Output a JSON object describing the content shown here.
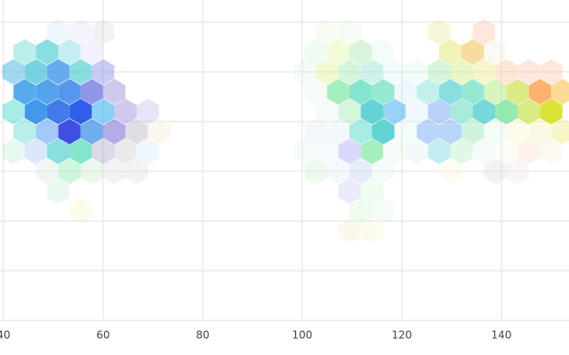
{
  "chart_data": {
    "type": "hexbin",
    "xlim": [
      39.29,
      153.57
    ],
    "ylim": [
      0,
      6.5
    ],
    "xticks": [
      40,
      60,
      80,
      100,
      120,
      140
    ],
    "yticks": [
      0,
      1,
      2,
      3,
      4,
      5,
      6
    ],
    "grid": true,
    "cells": [
      {
        "x": 51,
        "y": 5.8,
        "value": 1,
        "color": "#b8d8f0"
      },
      {
        "x": 55.5,
        "y": 5.8,
        "value": 1,
        "color": "#c8c8e8"
      },
      {
        "x": 60,
        "y": 5.8,
        "value": 1,
        "color": "#c0c0c0"
      },
      {
        "x": 44.25,
        "y": 5.4,
        "value": 3,
        "color": "#44d6c8"
      },
      {
        "x": 48.75,
        "y": 5.4,
        "value": 5,
        "color": "#2cc4c4"
      },
      {
        "x": 53.25,
        "y": 5.4,
        "value": 3,
        "color": "#6ad0d8"
      },
      {
        "x": 57.75,
        "y": 5.4,
        "value": 1,
        "color": "#b8c0f0"
      },
      {
        "x": 42,
        "y": 5.0,
        "value": 4,
        "color": "#3aaee0"
      },
      {
        "x": 46.5,
        "y": 5.0,
        "value": 6,
        "color": "#2cb8d0"
      },
      {
        "x": 51,
        "y": 5.0,
        "value": 7,
        "color": "#2f8fe8"
      },
      {
        "x": 55.5,
        "y": 5.0,
        "value": 5,
        "color": "#2cc4c4"
      },
      {
        "x": 60,
        "y": 5.0,
        "value": 4,
        "color": "#8a90e8"
      },
      {
        "x": 44.25,
        "y": 4.6,
        "value": 8,
        "color": "#2f9ae8"
      },
      {
        "x": 48.75,
        "y": 4.6,
        "value": 8,
        "color": "#2f8fe8"
      },
      {
        "x": 53.25,
        "y": 4.6,
        "value": 8,
        "color": "#2f80e8"
      },
      {
        "x": 57.75,
        "y": 4.6,
        "value": 7,
        "color": "#6a70e0"
      },
      {
        "x": 62.25,
        "y": 4.6,
        "value": 4,
        "color": "#9a8fd8"
      },
      {
        "x": 42,
        "y": 4.2,
        "value": 4,
        "color": "#44d6c8"
      },
      {
        "x": 46.5,
        "y": 4.2,
        "value": 9,
        "color": "#2f8fe8"
      },
      {
        "x": 51,
        "y": 4.2,
        "value": 9,
        "color": "#2f6fe8"
      },
      {
        "x": 55.5,
        "y": 4.2,
        "value": 10,
        "color": "#2f5fe8"
      },
      {
        "x": 60,
        "y": 4.2,
        "value": 6,
        "color": "#4ab8f0"
      },
      {
        "x": 64.5,
        "y": 4.2,
        "value": 4,
        "color": "#9a8fd8"
      },
      {
        "x": 69,
        "y": 4.2,
        "value": 2,
        "color": "#a8a8e0"
      },
      {
        "x": 44.25,
        "y": 3.8,
        "value": 3,
        "color": "#44d6c8"
      },
      {
        "x": 48.75,
        "y": 3.8,
        "value": 5,
        "color": "#5a9ef0"
      },
      {
        "x": 53.25,
        "y": 3.8,
        "value": 10,
        "color": "#3f4fe0"
      },
      {
        "x": 57.75,
        "y": 3.8,
        "value": 7,
        "color": "#3f8fe8"
      },
      {
        "x": 62.25,
        "y": 3.8,
        "value": 6,
        "color": "#8a80d8"
      },
      {
        "x": 66.75,
        "y": 3.8,
        "value": 3,
        "color": "#a8a8b8"
      },
      {
        "x": 71.25,
        "y": 3.8,
        "value": 1,
        "color": "#f0d8b0"
      },
      {
        "x": 42,
        "y": 3.4,
        "value": 1,
        "color": "#90e0b0"
      },
      {
        "x": 46.5,
        "y": 3.4,
        "value": 2,
        "color": "#8ab0f0"
      },
      {
        "x": 51,
        "y": 3.4,
        "value": 5,
        "color": "#2cc4c4"
      },
      {
        "x": 55.5,
        "y": 3.4,
        "value": 6,
        "color": "#44d6b0"
      },
      {
        "x": 60,
        "y": 3.4,
        "value": 3,
        "color": "#a098c0"
      },
      {
        "x": 64.5,
        "y": 3.4,
        "value": 2,
        "color": "#b8b8b8"
      },
      {
        "x": 69,
        "y": 3.4,
        "value": 1,
        "color": "#b8d8f0"
      },
      {
        "x": 48.75,
        "y": 3.0,
        "value": 1,
        "color": "#c0d0c0"
      },
      {
        "x": 53.25,
        "y": 3.0,
        "value": 2,
        "color": "#5ee08a"
      },
      {
        "x": 57.75,
        "y": 3.0,
        "value": 1,
        "color": "#9ee0a0"
      },
      {
        "x": 62.25,
        "y": 3.0,
        "value": 1,
        "color": "#c0c0c0"
      },
      {
        "x": 66.75,
        "y": 3.0,
        "value": 1,
        "color": "#c0c0c0"
      },
      {
        "x": 51,
        "y": 2.6,
        "value": 1,
        "color": "#9ee0c0"
      },
      {
        "x": 55.5,
        "y": 2.2,
        "value": 1,
        "color": "#f0f0a0"
      },
      {
        "x": 105,
        "y": 5.8,
        "value": 1,
        "color": "#e0f0c0"
      },
      {
        "x": 109.5,
        "y": 5.8,
        "value": 1,
        "color": "#d0f0d0"
      },
      {
        "x": 127.5,
        "y": 5.8,
        "value": 2,
        "color": "#e0e080"
      },
      {
        "x": 136.5,
        "y": 5.8,
        "value": 2,
        "color": "#ffb090"
      },
      {
        "x": 102.75,
        "y": 5.4,
        "value": 1,
        "color": "#b0f0c0"
      },
      {
        "x": 107.25,
        "y": 5.4,
        "value": 2,
        "color": "#d0f080"
      },
      {
        "x": 111.75,
        "y": 5.4,
        "value": 3,
        "color": "#9ee0a0"
      },
      {
        "x": 116.25,
        "y": 5.4,
        "value": 1,
        "color": "#c0f0e0"
      },
      {
        "x": 129.75,
        "y": 5.4,
        "value": 3,
        "color": "#d8e040"
      },
      {
        "x": 134.25,
        "y": 5.4,
        "value": 5,
        "color": "#f0c050"
      },
      {
        "x": 138.75,
        "y": 5.4,
        "value": 1,
        "color": "#f0e0c0"
      },
      {
        "x": 100.5,
        "y": 5.0,
        "value": 1,
        "color": "#d0f0e0"
      },
      {
        "x": 105,
        "y": 5.0,
        "value": 3,
        "color": "#e0f080"
      },
      {
        "x": 109.5,
        "y": 5.0,
        "value": 3,
        "color": "#90e8a0"
      },
      {
        "x": 114,
        "y": 5.0,
        "value": 3,
        "color": "#80e0c8"
      },
      {
        "x": 118.5,
        "y": 5.0,
        "value": 1,
        "color": "#c0f0f0"
      },
      {
        "x": 123,
        "y": 5.0,
        "value": 1,
        "color": "#c0f0e0"
      },
      {
        "x": 127.5,
        "y": 5.0,
        "value": 3,
        "color": "#90e8a0"
      },
      {
        "x": 132,
        "y": 5.0,
        "value": 3,
        "color": "#c8e860"
      },
      {
        "x": 136.5,
        "y": 5.0,
        "value": 3,
        "color": "#e8e870"
      },
      {
        "x": 141,
        "y": 5.0,
        "value": 3,
        "color": "#ffc090"
      },
      {
        "x": 145.5,
        "y": 5.0,
        "value": 2,
        "color": "#ffb090"
      },
      {
        "x": 150,
        "y": 5.0,
        "value": 2,
        "color": "#ffb090"
      },
      {
        "x": 102.75,
        "y": 4.6,
        "value": 1,
        "color": "#d0f0e0"
      },
      {
        "x": 107.25,
        "y": 4.6,
        "value": 5,
        "color": "#5ee08a"
      },
      {
        "x": 111.75,
        "y": 4.6,
        "value": 6,
        "color": "#44d6b0"
      },
      {
        "x": 116.25,
        "y": 4.6,
        "value": 5,
        "color": "#44d6b0"
      },
      {
        "x": 120.75,
        "y": 4.6,
        "value": 1,
        "color": "#b0d8f0"
      },
      {
        "x": 125.25,
        "y": 4.6,
        "value": 3,
        "color": "#60d8c8"
      },
      {
        "x": 129.75,
        "y": 4.6,
        "value": 5,
        "color": "#2cc4c4"
      },
      {
        "x": 134.25,
        "y": 4.6,
        "value": 5,
        "color": "#44d6b0"
      },
      {
        "x": 138.75,
        "y": 4.6,
        "value": 4,
        "color": "#a8e870"
      },
      {
        "x": 143.25,
        "y": 4.6,
        "value": 6,
        "color": "#c8e040"
      },
      {
        "x": 147.75,
        "y": 4.6,
        "value": 8,
        "color": "#ffa050"
      },
      {
        "x": 152.25,
        "y": 4.6,
        "value": 5,
        "color": "#f8c040"
      },
      {
        "x": 105,
        "y": 4.2,
        "value": 1,
        "color": "#d0f0e0"
      },
      {
        "x": 109.5,
        "y": 4.2,
        "value": 3,
        "color": "#90e8a0"
      },
      {
        "x": 114,
        "y": 4.2,
        "value": 7,
        "color": "#2cc4c4"
      },
      {
        "x": 118.5,
        "y": 4.2,
        "value": 5,
        "color": "#4ab0f0"
      },
      {
        "x": 123,
        "y": 4.2,
        "value": 1,
        "color": "#c0e0f0"
      },
      {
        "x": 127.5,
        "y": 4.2,
        "value": 4,
        "color": "#6a9ef0"
      },
      {
        "x": 132,
        "y": 4.2,
        "value": 4,
        "color": "#44d6b0"
      },
      {
        "x": 136.5,
        "y": 4.2,
        "value": 6,
        "color": "#2cc4c4"
      },
      {
        "x": 141,
        "y": 4.2,
        "value": 6,
        "color": "#5ee08a"
      },
      {
        "x": 145.5,
        "y": 4.2,
        "value": 6,
        "color": "#c8e040"
      },
      {
        "x": 150,
        "y": 4.2,
        "value": 9,
        "color": "#d8e020"
      },
      {
        "x": 102.75,
        "y": 3.8,
        "value": 1,
        "color": "#c0d8f0"
      },
      {
        "x": 107.25,
        "y": 3.8,
        "value": 1,
        "color": "#c0e0f0"
      },
      {
        "x": 111.75,
        "y": 3.8,
        "value": 4,
        "color": "#44d6c8"
      },
      {
        "x": 116.25,
        "y": 3.8,
        "value": 7,
        "color": "#2cc4c4"
      },
      {
        "x": 120.75,
        "y": 3.8,
        "value": 1,
        "color": "#c0f0e0"
      },
      {
        "x": 125.25,
        "y": 3.8,
        "value": 4,
        "color": "#6aa8f0"
      },
      {
        "x": 129.75,
        "y": 3.8,
        "value": 4,
        "color": "#6aa8f0"
      },
      {
        "x": 134.25,
        "y": 3.8,
        "value": 3,
        "color": "#80e0a8"
      },
      {
        "x": 138.75,
        "y": 3.8,
        "value": 1,
        "color": "#d0f0e0"
      },
      {
        "x": 143.25,
        "y": 3.8,
        "value": 1,
        "color": "#f0f0a0"
      },
      {
        "x": 147.75,
        "y": 3.8,
        "value": 2,
        "color": "#f0f0a0"
      },
      {
        "x": 152.25,
        "y": 3.8,
        "value": 3,
        "color": "#e8e870"
      },
      {
        "x": 100.5,
        "y": 3.4,
        "value": 1,
        "color": "#d0f0e0"
      },
      {
        "x": 105,
        "y": 3.4,
        "value": 1,
        "color": "#d0e8f0"
      },
      {
        "x": 109.5,
        "y": 3.4,
        "value": 3,
        "color": "#9a9ff0"
      },
      {
        "x": 114,
        "y": 3.4,
        "value": 5,
        "color": "#5ee08a"
      },
      {
        "x": 118.5,
        "y": 3.4,
        "value": 1,
        "color": "#d0f0e0"
      },
      {
        "x": 123,
        "y": 3.4,
        "value": 1,
        "color": "#c0e8f0"
      },
      {
        "x": 127.5,
        "y": 3.4,
        "value": 3,
        "color": "#60d0d8"
      },
      {
        "x": 132,
        "y": 3.4,
        "value": 2,
        "color": "#a0e8b0"
      },
      {
        "x": 136.5,
        "y": 3.4,
        "value": 1,
        "color": "#d0f0e0"
      },
      {
        "x": 141,
        "y": 3.4,
        "value": 1,
        "color": "#f0f0d0"
      },
      {
        "x": 145.5,
        "y": 3.4,
        "value": 1,
        "color": "#ffc0a0"
      },
      {
        "x": 150,
        "y": 3.4,
        "value": 1,
        "color": "#f0e0c0"
      },
      {
        "x": 102.75,
        "y": 3.0,
        "value": 1,
        "color": "#b0e8b0"
      },
      {
        "x": 107.25,
        "y": 3.0,
        "value": 1,
        "color": "#d0e0f0"
      },
      {
        "x": 111.75,
        "y": 3.0,
        "value": 2,
        "color": "#a8c0f0"
      },
      {
        "x": 116.25,
        "y": 3.0,
        "value": 1,
        "color": "#d0f0e0"
      },
      {
        "x": 129.75,
        "y": 3.0,
        "value": 1,
        "color": "#f0f0c0"
      },
      {
        "x": 138.75,
        "y": 3.0,
        "value": 1,
        "color": "#c0c0d0"
      },
      {
        "x": 143.25,
        "y": 3.0,
        "value": 1,
        "color": "#e0d0e0"
      },
      {
        "x": 109.5,
        "y": 2.6,
        "value": 2,
        "color": "#b8b8f0"
      },
      {
        "x": 114,
        "y": 2.6,
        "value": 1,
        "color": "#b0f0c0"
      },
      {
        "x": 111.75,
        "y": 2.2,
        "value": 1,
        "color": "#b0f0b0"
      },
      {
        "x": 116.25,
        "y": 2.2,
        "value": 1,
        "color": "#d0f0d0"
      },
      {
        "x": 109.5,
        "y": 1.8,
        "value": 1,
        "color": "#f0e0a0"
      },
      {
        "x": 114,
        "y": 1.8,
        "value": 1,
        "color": "#f0f0b0"
      }
    ]
  }
}
